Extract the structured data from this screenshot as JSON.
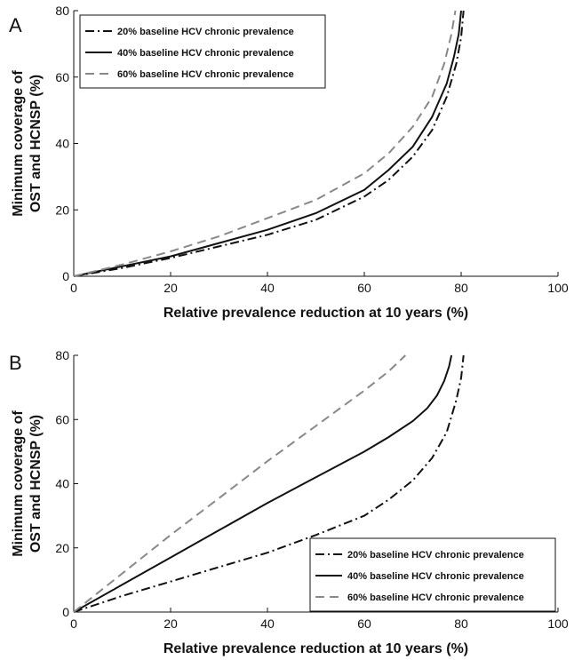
{
  "chart_data": [
    {
      "panel": "A",
      "type": "line",
      "xlabel": "Relative prevalence reduction at 10 years (%)",
      "ylabel": [
        "Minimum coverage of",
        "OST and HCNSP (%)"
      ],
      "xlim": [
        0,
        100
      ],
      "ylim": [
        0,
        80
      ],
      "xticks": [
        0,
        20,
        40,
        60,
        80,
        100
      ],
      "yticks": [
        0,
        20,
        40,
        60,
        80
      ],
      "grid": false,
      "legend_position": "top-left",
      "series": [
        {
          "name": "20% baseline HCV chronic prevalence",
          "style": "dashdot",
          "color": "#111111",
          "x": [
            0,
            10,
            20,
            30,
            40,
            50,
            60,
            65,
            70,
            74,
            77,
            79,
            80,
            80.5
          ],
          "y": [
            0,
            2.5,
            5.5,
            9,
            12.5,
            17,
            24,
            29,
            36,
            44,
            54,
            64,
            72,
            80
          ]
        },
        {
          "name": "40% baseline HCV chronic prevalence",
          "style": "solid",
          "color": "#111111",
          "x": [
            0,
            10,
            20,
            30,
            40,
            50,
            60,
            65,
            70,
            74,
            77,
            78.5,
            79.5,
            80
          ],
          "y": [
            0,
            3,
            6,
            10,
            14,
            19,
            26,
            32,
            39,
            48,
            58,
            66,
            73,
            80
          ]
        },
        {
          "name": "60% baseline HCV chronic prevalence",
          "style": "dashed",
          "color": "#888888",
          "x": [
            0,
            10,
            20,
            30,
            40,
            50,
            60,
            65,
            70,
            74,
            76.5,
            78,
            78.8
          ],
          "y": [
            0,
            3.5,
            7.5,
            12,
            17.5,
            23,
            31,
            37,
            45,
            54,
            64,
            73,
            80
          ]
        }
      ]
    },
    {
      "panel": "B",
      "type": "line",
      "xlabel": "Relative prevalence reduction at 10 years (%)",
      "ylabel": [
        "Minimum coverage of",
        "OST and HCNSP (%)"
      ],
      "xlim": [
        0,
        100
      ],
      "ylim": [
        0,
        80
      ],
      "xticks": [
        0,
        20,
        40,
        60,
        80,
        100
      ],
      "yticks": [
        0,
        20,
        40,
        60,
        80
      ],
      "grid": false,
      "legend_position": "bottom-right",
      "series": [
        {
          "name": "20% baseline HCV chronic prevalence",
          "style": "dashdot",
          "color": "#111111",
          "x": [
            0,
            10,
            20,
            30,
            40,
            50,
            60,
            65,
            70,
            74,
            77,
            79,
            80,
            80.5
          ],
          "y": [
            0,
            5,
            9.5,
            14,
            18.5,
            24,
            30,
            35,
            41,
            48,
            56,
            66,
            73,
            80
          ]
        },
        {
          "name": "40% baseline HCV chronic prevalence",
          "style": "solid",
          "color": "#111111",
          "x": [
            0,
            10,
            20,
            30,
            40,
            50,
            60,
            65,
            70,
            73,
            75,
            76.5,
            77.5,
            78
          ],
          "y": [
            0,
            8.5,
            17,
            25.5,
            34,
            42,
            50,
            54.5,
            59.5,
            63.5,
            67.5,
            72,
            76.5,
            80
          ]
        },
        {
          "name": "60% baseline HCV chronic prevalence",
          "style": "dashed",
          "color": "#888888",
          "x": [
            0,
            10,
            20,
            30,
            40,
            50,
            60,
            65,
            68.5
          ],
          "y": [
            0,
            12,
            24,
            35.5,
            47,
            58,
            69,
            75,
            80
          ]
        }
      ]
    }
  ]
}
